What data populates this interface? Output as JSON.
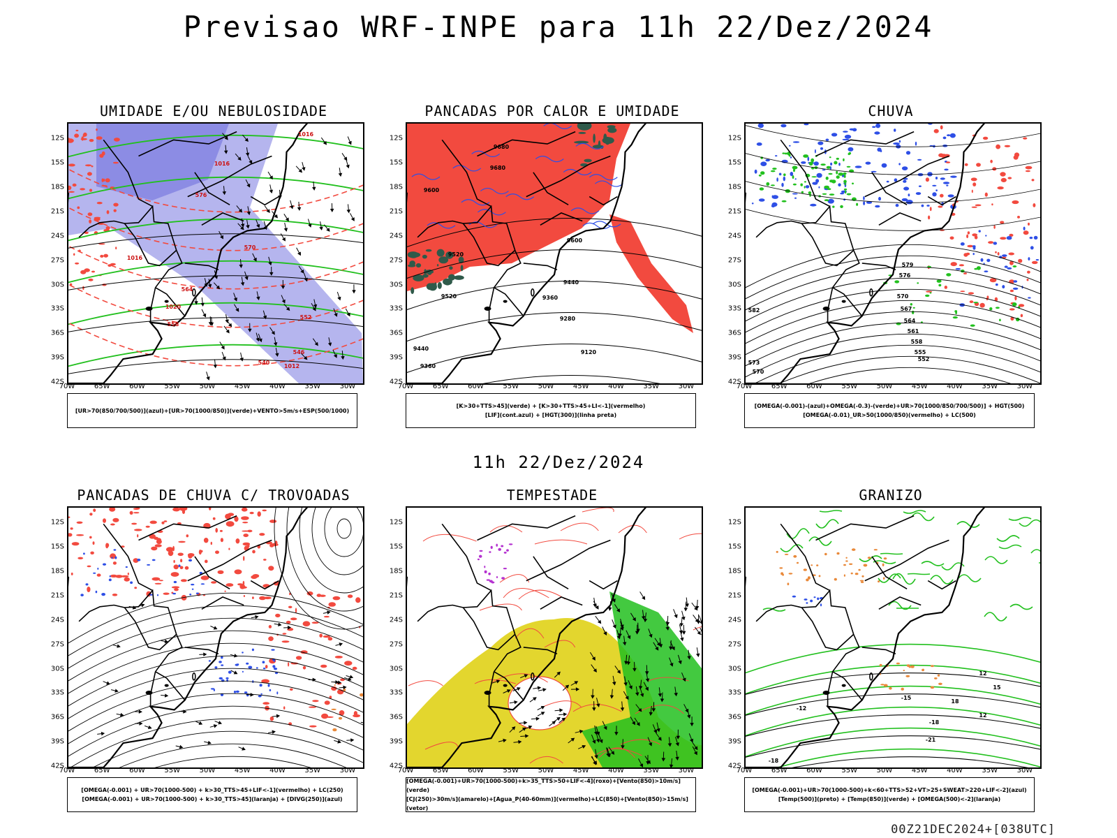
{
  "main_title": "Previsao WRF-INPE  para 11h 22/Dez/2024",
  "sub_title": "11h 22/Dez/2024",
  "footer": "00Z21DEC2024+[038UTC]",
  "lat_labels": [
    "12S",
    "15S",
    "18S",
    "21S",
    "24S",
    "27S",
    "30S",
    "33S",
    "36S",
    "39S",
    "42S"
  ],
  "lon_labels": [
    "70W",
    "65W",
    "60W",
    "55W",
    "50W",
    "45W",
    "40W",
    "35W",
    "30W"
  ],
  "colors": {
    "red": "#f24a3f",
    "blue": "#2e4fe6",
    "green": "#22c01e",
    "lavender": "#9c9ce8",
    "yellow": "#e3d62e",
    "darkgreen": "#2f5a4a",
    "orange": "#e9893a",
    "purple": "#b431d0"
  },
  "panels": [
    {
      "id": "umidade",
      "title": "UMIDADE E/OU NEBULOSIDADE",
      "legend": [
        "[UR>70(850/700/500)](azul)+[UR>70(1000/850)](verde)+VENTO>5m/s+ESP(500/1000)"
      ],
      "contour_labels": [
        "1016",
        "1016",
        "1012",
        "1016",
        "1020",
        "576",
        "570",
        "564",
        "558",
        "552",
        "546",
        "540"
      ]
    },
    {
      "id": "pancadas-calor",
      "title": "PANCADAS POR CALOR E UMIDADE",
      "legend": [
        "[K>30+TTS>45](verde)  +  [K>30+TTS>45+LI<-1](vermelho)",
        "[LIF](cont.azul)  +  [HGT(300)](linha preta)"
      ],
      "contour_labels": [
        "9680",
        "9680",
        "9600",
        "9600",
        "9520",
        "9520",
        "9440",
        "9440",
        "9360",
        "9360",
        "9280",
        "9120"
      ]
    },
    {
      "id": "chuva",
      "title": "CHUVA",
      "legend": [
        "[OMEGA(-0.001)-(azul)+OMEGA(-0.3)-(verde)+UR>70(1000/850/700/500)]  +  HGT(500)",
        "[OMEGA(-0.01)_UR>50(1000/850)(vermelho)  +  LC(500)"
      ],
      "contour_labels": [
        "579",
        "576",
        "570",
        "567",
        "564",
        "561",
        "558",
        "555",
        "552",
        "573",
        "570",
        "582"
      ]
    },
    {
      "id": "trovoadas",
      "title": "PANCADAS DE CHUVA C/ TROVOADAS",
      "legend": [
        "[OMEGA(-0.001)  +  UR>70(1000-500)  +  k>30_TTS>45+LIF<-1](vermelho)  +  LC(250)",
        "[OMEGA(-0.001)  +  UR>70(1000-500)  +  k>30_TTS>45](laranja)  +  [DIVG(250)](azul)"
      ],
      "contour_labels": []
    },
    {
      "id": "tempestade",
      "title": "TEMPESTADE",
      "legend": [
        "[OMEGA(-0.001)+UR>70(1000-500)+k>35_TTS>50+LIF<-4](roxo)+[Vento(850)>10m/s](verde)",
        "[CJ(250)>30m/s](amarelo)+[Agua_P(40-60mm)](vermelho)+LC(850)+[Vento(850)>15m/s](vetor)"
      ],
      "contour_labels": []
    },
    {
      "id": "granizo",
      "title": "GRANIZO",
      "legend": [
        "[OMEGA(-0.001)+UR>70(1000-500)+k<60+TTS>52+VT>25+SWEAT>220+LIF<-2](azul)",
        "[Temp(500)](preto)  +  [Temp(850)](verde)  +  [OMEGA(500)<-2](laranja)"
      ],
      "contour_labels": [
        "-12",
        "-15",
        "-18",
        "-21",
        "-18",
        "12",
        "12",
        "15",
        "18"
      ]
    }
  ]
}
